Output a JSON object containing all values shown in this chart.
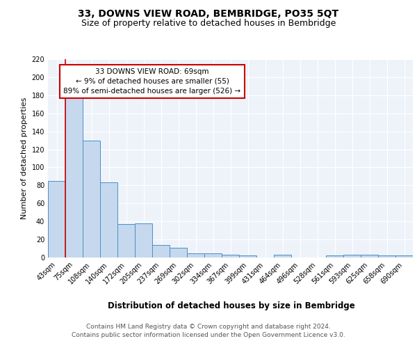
{
  "title": "33, DOWNS VIEW ROAD, BEMBRIDGE, PO35 5QT",
  "subtitle": "Size of property relative to detached houses in Bembridge",
  "xlabel": "Distribution of detached houses by size in Bembridge",
  "ylabel": "Number of detached properties",
  "bin_labels": [
    "43sqm",
    "75sqm",
    "108sqm",
    "140sqm",
    "172sqm",
    "205sqm",
    "237sqm",
    "269sqm",
    "302sqm",
    "334sqm",
    "367sqm",
    "399sqm",
    "431sqm",
    "464sqm",
    "496sqm",
    "528sqm",
    "561sqm",
    "593sqm",
    "625sqm",
    "658sqm",
    "690sqm"
  ],
  "bar_heights": [
    85,
    180,
    130,
    83,
    37,
    38,
    14,
    11,
    5,
    5,
    3,
    2,
    0,
    3,
    0,
    0,
    2,
    3,
    3,
    2,
    2
  ],
  "bar_color": "#c5d8ed",
  "bar_edge_color": "#4a90c4",
  "background_color": "#eef3fa",
  "grid_color": "#ffffff",
  "annotation_line1": "33 DOWNS VIEW ROAD: 69sqm",
  "annotation_line2": "← 9% of detached houses are smaller (55)",
  "annotation_line3": "89% of semi-detached houses are larger (526) →",
  "annotation_box_color": "#ffffff",
  "annotation_border_color": "#cc0000",
  "ylim": [
    0,
    220
  ],
  "yticks": [
    0,
    20,
    40,
    60,
    80,
    100,
    120,
    140,
    160,
    180,
    200,
    220
  ],
  "footer_line1": "Contains HM Land Registry data © Crown copyright and database right 2024.",
  "footer_line2": "Contains public sector information licensed under the Open Government Licence v3.0.",
  "title_fontsize": 10,
  "subtitle_fontsize": 9,
  "xlabel_fontsize": 8.5,
  "ylabel_fontsize": 8,
  "annotation_fontsize": 7.5,
  "tick_fontsize": 7,
  "footer_fontsize": 6.5
}
